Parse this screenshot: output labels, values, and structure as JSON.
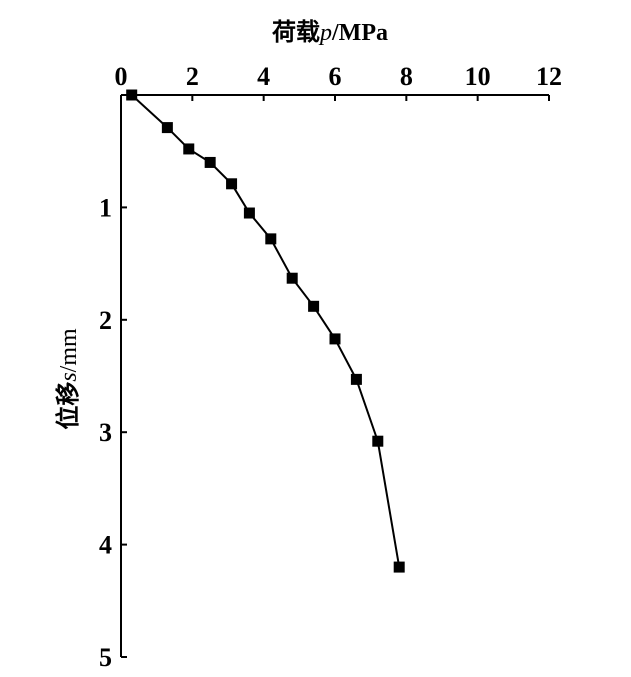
{
  "chart_data": {
    "type": "line",
    "title": "",
    "xlabel": "荷载p/MPa",
    "xlabel_parts": {
      "prefix": "荷载",
      "var": "p",
      "suffix": "/MPa"
    },
    "ylabel": "位移s/mm",
    "ylabel_parts": {
      "prefix": "位移",
      "var": "s",
      "suffix": "/mm"
    },
    "x_axis_position": "top",
    "y_axis_inverted": true,
    "xlim": [
      0,
      12
    ],
    "ylim": [
      0,
      5
    ],
    "x_ticks": [
      "0",
      "2",
      "4",
      "6",
      "8",
      "10",
      "12"
    ],
    "y_ticks": [
      "0",
      "1",
      "2",
      "3",
      "4",
      "5"
    ],
    "grid": false,
    "marker": "square",
    "line_color": "#000000",
    "series": [
      {
        "x": [
          0.3,
          1.3,
          1.9,
          2.5,
          3.1,
          3.6,
          4.2,
          4.8,
          5.4,
          6.0,
          6.6,
          7.2,
          7.8
        ],
        "y": [
          0.0,
          0.29,
          0.48,
          0.6,
          0.79,
          1.05,
          1.28,
          1.63,
          1.88,
          2.17,
          2.53,
          3.08,
          4.2
        ]
      }
    ]
  }
}
